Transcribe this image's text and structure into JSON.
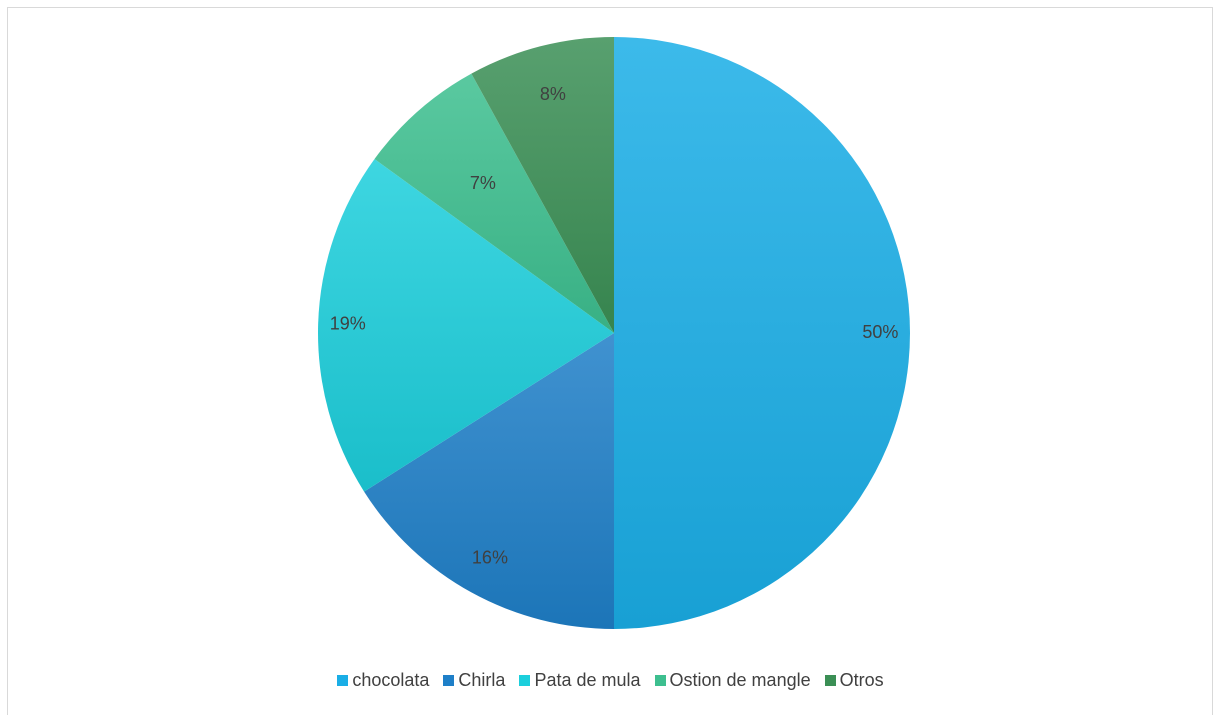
{
  "chart_data": {
    "type": "pie",
    "categories": [
      "chocolata",
      "Chirla",
      "Pata de mula",
      "Ostion de mangle",
      "Otros"
    ],
    "values": [
      50,
      16,
      19,
      7,
      8
    ],
    "labels": [
      "50%",
      "16%",
      "19%",
      "7%",
      "8%"
    ],
    "colors": [
      "#1aaee6",
      "#1e7fc8",
      "#1ccfdc",
      "#3dbf8f",
      "#3b8f55"
    ],
    "start": "top, clockwise",
    "legend_position": "bottom"
  }
}
